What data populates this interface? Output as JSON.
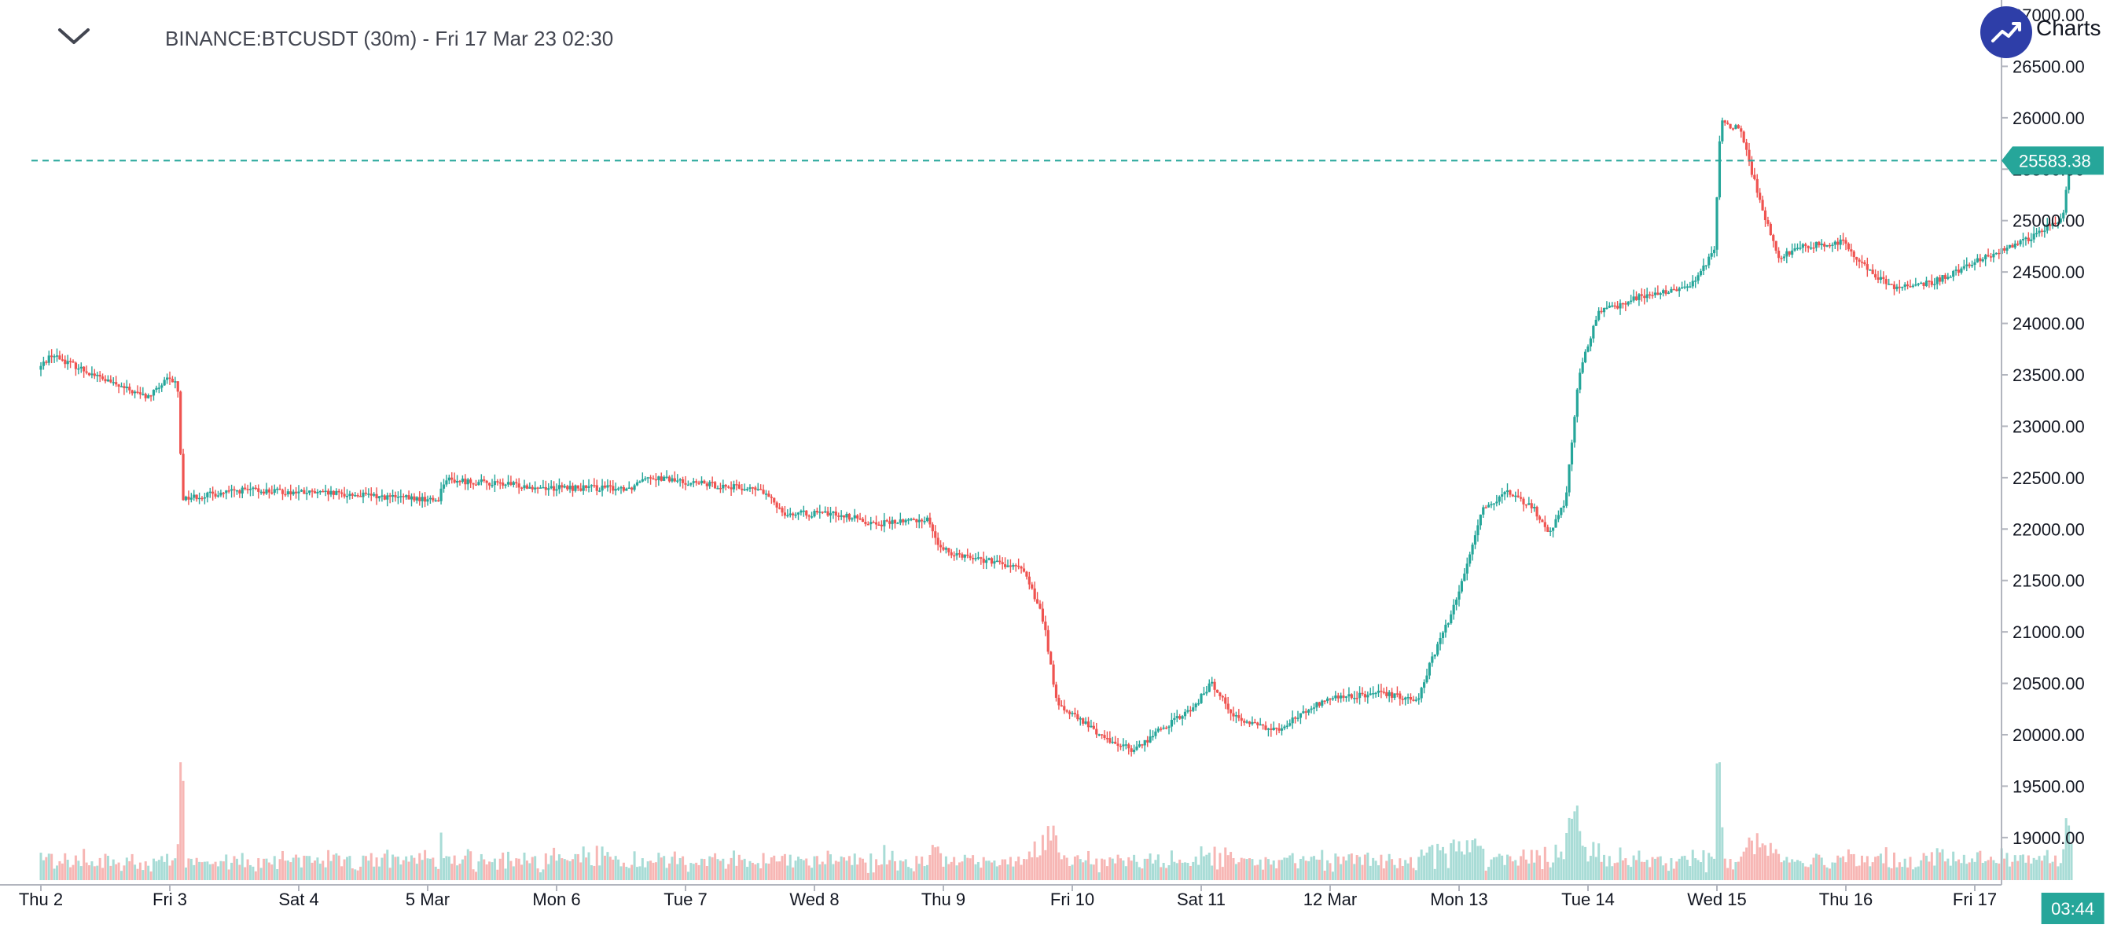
{
  "header": {
    "title": "BINANCE:BTCUSDT (30m) - Fri 17 Mar 23 02:30",
    "logo_text": "Charts"
  },
  "colors": {
    "up": "#26a69a",
    "down": "#ef5350",
    "volume_up": "#a8dcd6",
    "volume_down": "#f7b6b4",
    "price_line": "#26a69a",
    "logo": "#2e3ea8"
  },
  "current_price_label": "25583.38",
  "time_label": "03:44",
  "chart_data": {
    "type": "candlestick",
    "interval": "30m",
    "ylim": [
      18800,
      27000
    ],
    "y_ticks": [
      "19000.00",
      "19500.00",
      "20000.00",
      "20500.00",
      "21000.00",
      "21500.00",
      "22000.00",
      "22500.00",
      "23000.00",
      "23500.00",
      "24000.00",
      "24500.00",
      "25000.00",
      "25500.00",
      "26000.00",
      "26500.00",
      "27000.00"
    ],
    "x_ticks": [
      "Thu 2",
      "Fri 3",
      "Sat 4",
      "5 Mar",
      "Mon 6",
      "Tue 7",
      "Wed 8",
      "Thu 9",
      "Fri 10",
      "Sat 11",
      "12 Mar",
      "Mon 13",
      "Tue 14",
      "Wed 15",
      "Thu 16",
      "Fri 17"
    ],
    "current_price": 25583.38,
    "anchors": [
      {
        "day": 0.0,
        "price": 23550
      },
      {
        "day": 0.1,
        "price": 23700
      },
      {
        "day": 0.6,
        "price": 23400
      },
      {
        "day": 0.85,
        "price": 23280
      },
      {
        "day": 1.0,
        "price": 23450
      },
      {
        "day": 1.08,
        "price": 23420
      },
      {
        "day": 1.12,
        "price": 22300
      },
      {
        "day": 1.6,
        "price": 22380
      },
      {
        "day": 2.5,
        "price": 22330
      },
      {
        "day": 3.1,
        "price": 22280
      },
      {
        "day": 3.15,
        "price": 22480
      },
      {
        "day": 4.0,
        "price": 22400
      },
      {
        "day": 4.6,
        "price": 22400
      },
      {
        "day": 4.7,
        "price": 22520
      },
      {
        "day": 5.0,
        "price": 22460
      },
      {
        "day": 5.6,
        "price": 22380
      },
      {
        "day": 5.8,
        "price": 22150
      },
      {
        "day": 6.2,
        "price": 22150
      },
      {
        "day": 6.5,
        "price": 22050
      },
      {
        "day": 6.9,
        "price": 22100
      },
      {
        "day": 7.0,
        "price": 21800
      },
      {
        "day": 7.5,
        "price": 21650
      },
      {
        "day": 7.65,
        "price": 21600
      },
      {
        "day": 7.8,
        "price": 21100
      },
      {
        "day": 7.9,
        "price": 20300
      },
      {
        "day": 8.3,
        "price": 19950
      },
      {
        "day": 8.5,
        "price": 19850
      },
      {
        "day": 8.7,
        "price": 20050
      },
      {
        "day": 8.95,
        "price": 20250
      },
      {
        "day": 9.1,
        "price": 20500
      },
      {
        "day": 9.3,
        "price": 20150
      },
      {
        "day": 9.6,
        "price": 20050
      },
      {
        "day": 10.0,
        "price": 20350
      },
      {
        "day": 10.4,
        "price": 20400
      },
      {
        "day": 10.7,
        "price": 20350
      },
      {
        "day": 10.8,
        "price": 20700
      },
      {
        "day": 11.0,
        "price": 21300
      },
      {
        "day": 11.2,
        "price": 22200
      },
      {
        "day": 11.4,
        "price": 22350
      },
      {
        "day": 11.6,
        "price": 22200
      },
      {
        "day": 11.72,
        "price": 21950
      },
      {
        "day": 11.85,
        "price": 22300
      },
      {
        "day": 11.95,
        "price": 23500
      },
      {
        "day": 12.1,
        "price": 24100
      },
      {
        "day": 12.4,
        "price": 24250
      },
      {
        "day": 12.8,
        "price": 24350
      },
      {
        "day": 13.0,
        "price": 24700
      },
      {
        "day": 13.05,
        "price": 25950
      },
      {
        "day": 13.2,
        "price": 25900
      },
      {
        "day": 13.35,
        "price": 25200
      },
      {
        "day": 13.5,
        "price": 24650
      },
      {
        "day": 13.7,
        "price": 24750
      },
      {
        "day": 14.0,
        "price": 24800
      },
      {
        "day": 14.2,
        "price": 24500
      },
      {
        "day": 14.4,
        "price": 24350
      },
      {
        "day": 14.7,
        "price": 24400
      },
      {
        "day": 15.1,
        "price": 24650
      },
      {
        "day": 15.4,
        "price": 24800
      },
      {
        "day": 15.6,
        "price": 24950
      },
      {
        "day": 15.7,
        "price": 25000
      },
      {
        "day": 15.76,
        "price": 25583
      }
    ]
  }
}
